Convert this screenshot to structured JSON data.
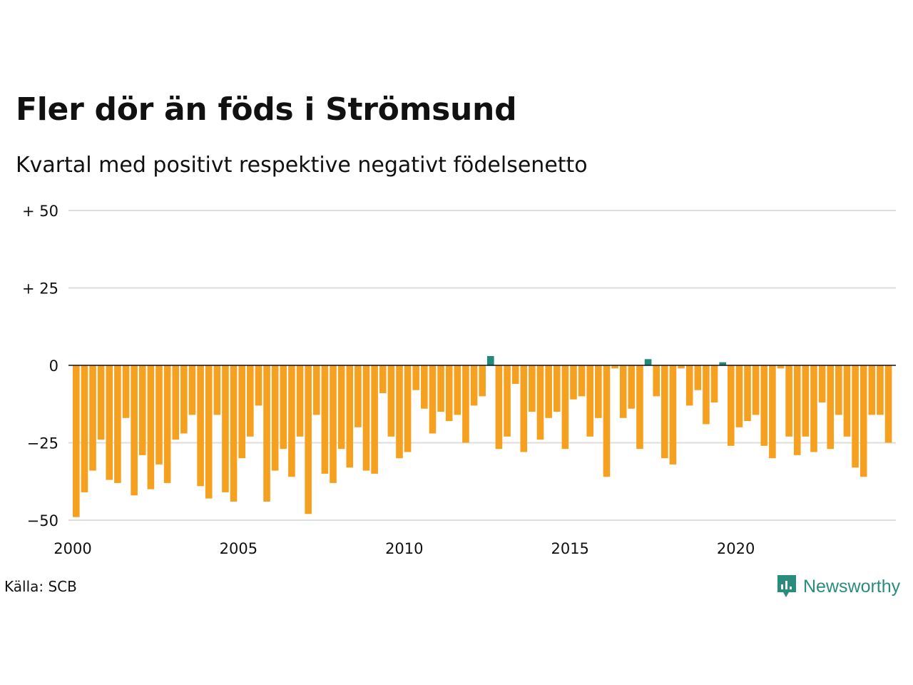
{
  "chart_data": {
    "type": "bar",
    "title": "Fler dör än föds i Strömsund",
    "subtitle": "Kvartal med positivt respektive negativt födelsenetto",
    "xlabel": "",
    "ylabel": "",
    "x_start_year": 2000,
    "x_ticks": [
      "2000",
      "2005",
      "2010",
      "2015",
      "2020"
    ],
    "y_ticks": [
      {
        "value": 50,
        "label": "+ 50"
      },
      {
        "value": 25,
        "label": "+ 25"
      },
      {
        "value": 0,
        "label": "0"
      },
      {
        "value": -25,
        "label": "−25"
      },
      {
        "value": -50,
        "label": "−50"
      }
    ],
    "ylim": [
      -50,
      50
    ],
    "grid": true,
    "colors": {
      "positive": "#1f8a7a",
      "negative": "#f5a01e",
      "grid": "#dddddd",
      "zero": "#111111"
    },
    "values": [
      -49,
      -41,
      -34,
      -24,
      -37,
      -38,
      -17,
      -42,
      -29,
      -40,
      -32,
      -38,
      -24,
      -22,
      -16,
      -39,
      -43,
      -16,
      -41,
      -44,
      -30,
      -23,
      -13,
      -44,
      -34,
      -27,
      -36,
      -23,
      -48,
      -16,
      -35,
      -38,
      -27,
      -33,
      -20,
      -34,
      -35,
      -9,
      -23,
      -30,
      -28,
      -8,
      -14,
      -22,
      -15,
      -18,
      -16,
      -25,
      -13,
      -10,
      3,
      -27,
      -23,
      -6,
      -28,
      -15,
      -24,
      -17,
      -15,
      -27,
      -11,
      -10,
      -23,
      -17,
      -36,
      -1,
      -17,
      -14,
      -27,
      2,
      -10,
      -30,
      -32,
      -1,
      -13,
      -8,
      -19,
      -12,
      1,
      -26,
      -20,
      -18,
      -16,
      -26,
      -30,
      -1,
      -23,
      -29,
      -23,
      -28,
      -12,
      -27,
      -16,
      -23,
      -33,
      -36,
      -16,
      -16,
      -25
    ]
  },
  "footer": {
    "source": "Källa: SCB",
    "brand": "Newsworthy"
  }
}
